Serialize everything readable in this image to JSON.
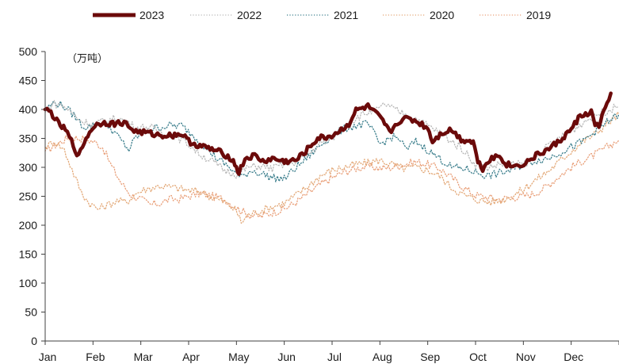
{
  "chart_data": {
    "type": "line",
    "title": "",
    "unit": "（万吨）",
    "xlabel": "",
    "ylabel": "",
    "ylim": [
      0,
      500
    ],
    "yticks": [
      0,
      50,
      100,
      150,
      200,
      250,
      300,
      350,
      400,
      450,
      500
    ],
    "months": [
      "Jan",
      "Feb",
      "Mar",
      "Apr",
      "May",
      "Jun",
      "Jul",
      "Aug",
      "Sep",
      "Oct",
      "Nov",
      "Dec"
    ],
    "grid": false,
    "legend_position": "top",
    "x_units": "month index (0 = start of Jan, 12 = end of Dec)",
    "series": [
      {
        "name": "2023",
        "color": "#6b0a0a",
        "style": "solid-thick",
        "points": [
          [
            0.0,
            400
          ],
          [
            0.12,
            395
          ],
          [
            0.28,
            375
          ],
          [
            0.42,
            365
          ],
          [
            0.55,
            345
          ],
          [
            0.7,
            318
          ],
          [
            0.82,
            345
          ],
          [
            1.0,
            370
          ],
          [
            1.2,
            378
          ],
          [
            1.45,
            375
          ],
          [
            1.65,
            378
          ],
          [
            1.78,
            368
          ],
          [
            1.9,
            362
          ],
          [
            2.1,
            360
          ],
          [
            2.35,
            356
          ],
          [
            2.6,
            355
          ],
          [
            2.85,
            358
          ],
          [
            3.0,
            345
          ],
          [
            3.2,
            338
          ],
          [
            3.45,
            332
          ],
          [
            3.7,
            325
          ],
          [
            3.9,
            315
          ],
          [
            4.0,
            300
          ],
          [
            4.05,
            290
          ],
          [
            4.18,
            315
          ],
          [
            4.38,
            320
          ],
          [
            4.55,
            310
          ],
          [
            4.75,
            315
          ],
          [
            5.0,
            310
          ],
          [
            5.25,
            312
          ],
          [
            5.45,
            328
          ],
          [
            5.7,
            350
          ],
          [
            5.95,
            353
          ],
          [
            6.15,
            362
          ],
          [
            6.35,
            375
          ],
          [
            6.5,
            398
          ],
          [
            6.75,
            405
          ],
          [
            6.95,
            390
          ],
          [
            7.1,
            375
          ],
          [
            7.2,
            360
          ],
          [
            7.4,
            380
          ],
          [
            7.6,
            385
          ],
          [
            7.8,
            378
          ],
          [
            8.0,
            368
          ],
          [
            8.1,
            345
          ],
          [
            8.3,
            360
          ],
          [
            8.5,
            365
          ],
          [
            8.7,
            348
          ],
          [
            8.95,
            345
          ],
          [
            9.05,
            310
          ],
          [
            9.15,
            298
          ],
          [
            9.3,
            315
          ],
          [
            9.5,
            320
          ],
          [
            9.65,
            305
          ],
          [
            9.85,
            302
          ],
          [
            10.05,
            308
          ],
          [
            10.3,
            322
          ],
          [
            10.5,
            330
          ],
          [
            10.75,
            345
          ],
          [
            11.0,
            365
          ],
          [
            11.15,
            385
          ],
          [
            11.3,
            392
          ],
          [
            11.42,
            395
          ],
          [
            11.5,
            375
          ],
          [
            11.58,
            370
          ],
          [
            11.68,
            395
          ],
          [
            11.75,
            410
          ],
          [
            11.83,
            428
          ]
        ]
      },
      {
        "name": "2022",
        "color": "#b8b8b8",
        "style": "dotted",
        "points": [
          [
            0.0,
            395
          ],
          [
            0.15,
            410
          ],
          [
            0.35,
            408
          ],
          [
            0.55,
            395
          ],
          [
            0.75,
            380
          ],
          [
            1.0,
            375
          ],
          [
            1.25,
            380
          ],
          [
            1.5,
            385
          ],
          [
            1.7,
            380
          ],
          [
            1.9,
            368
          ],
          [
            2.15,
            370
          ],
          [
            2.4,
            362
          ],
          [
            2.7,
            355
          ],
          [
            3.0,
            340
          ],
          [
            3.25,
            322
          ],
          [
            3.5,
            310
          ],
          [
            3.75,
            295
          ],
          [
            4.0,
            288
          ],
          [
            4.25,
            300
          ],
          [
            4.5,
            302
          ],
          [
            4.75,
            298
          ],
          [
            5.0,
            305
          ],
          [
            5.25,
            310
          ],
          [
            5.5,
            322
          ],
          [
            5.75,
            340
          ],
          [
            6.0,
            350
          ],
          [
            6.25,
            370
          ],
          [
            6.5,
            385
          ],
          [
            6.75,
            395
          ],
          [
            7.0,
            400
          ],
          [
            7.1,
            410
          ],
          [
            7.25,
            402
          ],
          [
            7.5,
            392
          ],
          [
            7.75,
            385
          ],
          [
            8.0,
            372
          ],
          [
            8.25,
            360
          ],
          [
            8.5,
            345
          ],
          [
            8.75,
            330
          ],
          [
            9.0,
            305
          ],
          [
            9.25,
            300
          ],
          [
            9.5,
            305
          ],
          [
            9.75,
            305
          ],
          [
            10.0,
            305
          ],
          [
            10.25,
            318
          ],
          [
            10.5,
            335
          ],
          [
            10.75,
            350
          ],
          [
            11.0,
            362
          ],
          [
            11.25,
            378
          ],
          [
            11.5,
            390
          ],
          [
            11.75,
            398
          ],
          [
            12.0,
            405
          ]
        ]
      },
      {
        "name": "2021",
        "color": "#3b7e8c",
        "style": "dotted",
        "points": [
          [
            0.0,
            400
          ],
          [
            0.2,
            412
          ],
          [
            0.4,
            405
          ],
          [
            0.6,
            390
          ],
          [
            0.8,
            370
          ],
          [
            1.0,
            372
          ],
          [
            1.2,
            380
          ],
          [
            1.4,
            365
          ],
          [
            1.6,
            345
          ],
          [
            1.75,
            330
          ],
          [
            1.9,
            352
          ],
          [
            2.1,
            362
          ],
          [
            2.3,
            368
          ],
          [
            2.6,
            372
          ],
          [
            2.85,
            372
          ],
          [
            3.1,
            355
          ],
          [
            3.35,
            335
          ],
          [
            3.6,
            315
          ],
          [
            3.85,
            300
          ],
          [
            4.1,
            282
          ],
          [
            4.3,
            295
          ],
          [
            4.5,
            290
          ],
          [
            4.75,
            282
          ],
          [
            5.0,
            280
          ],
          [
            5.25,
            300
          ],
          [
            5.5,
            318
          ],
          [
            5.75,
            338
          ],
          [
            6.0,
            355
          ],
          [
            6.3,
            368
          ],
          [
            6.5,
            372
          ],
          [
            6.75,
            375
          ],
          [
            6.9,
            355
          ],
          [
            7.0,
            340
          ],
          [
            7.25,
            352
          ],
          [
            7.4,
            350
          ],
          [
            7.55,
            330
          ],
          [
            7.75,
            345
          ],
          [
            8.0,
            330
          ],
          [
            8.25,
            315
          ],
          [
            8.5,
            300
          ],
          [
            8.75,
            298
          ],
          [
            9.0,
            292
          ],
          [
            9.25,
            285
          ],
          [
            9.5,
            290
          ],
          [
            9.75,
            295
          ],
          [
            10.0,
            305
          ],
          [
            10.25,
            312
          ],
          [
            10.5,
            315
          ],
          [
            10.75,
            325
          ],
          [
            11.0,
            335
          ],
          [
            11.25,
            345
          ],
          [
            11.5,
            362
          ],
          [
            11.75,
            378
          ],
          [
            12.0,
            392
          ]
        ]
      },
      {
        "name": "2020",
        "color": "#e3a877",
        "style": "dotted",
        "points": [
          [
            0.0,
            335
          ],
          [
            0.2,
            345
          ],
          [
            0.4,
            330
          ],
          [
            0.6,
            288
          ],
          [
            0.75,
            258
          ],
          [
            0.9,
            240
          ],
          [
            1.1,
            228
          ],
          [
            1.3,
            235
          ],
          [
            1.5,
            242
          ],
          [
            1.7,
            240
          ],
          [
            1.9,
            255
          ],
          [
            2.1,
            262
          ],
          [
            2.4,
            268
          ],
          [
            2.7,
            265
          ],
          [
            3.0,
            260
          ],
          [
            3.25,
            258
          ],
          [
            3.5,
            248
          ],
          [
            3.75,
            240
          ],
          [
            4.0,
            225
          ],
          [
            4.1,
            205
          ],
          [
            4.25,
            218
          ],
          [
            4.5,
            225
          ],
          [
            4.75,
            232
          ],
          [
            5.0,
            238
          ],
          [
            5.25,
            252
          ],
          [
            5.5,
            268
          ],
          [
            5.75,
            285
          ],
          [
            6.0,
            295
          ],
          [
            6.25,
            300
          ],
          [
            6.5,
            305
          ],
          [
            6.75,
            308
          ],
          [
            7.0,
            312
          ],
          [
            7.25,
            305
          ],
          [
            7.5,
            298
          ],
          [
            7.75,
            300
          ],
          [
            8.0,
            295
          ],
          [
            8.25,
            285
          ],
          [
            8.5,
            265
          ],
          [
            8.75,
            252
          ],
          [
            9.0,
            245
          ],
          [
            9.25,
            240
          ],
          [
            9.5,
            242
          ],
          [
            9.75,
            250
          ],
          [
            10.0,
            262
          ],
          [
            10.25,
            278
          ],
          [
            10.5,
            292
          ],
          [
            10.75,
            310
          ],
          [
            11.0,
            328
          ],
          [
            11.25,
            345
          ],
          [
            11.5,
            358
          ],
          [
            11.75,
            375
          ],
          [
            12.0,
            392
          ]
        ]
      },
      {
        "name": "2019",
        "color": "#e9a07a",
        "style": "dotted",
        "points": [
          [
            0.0,
            328
          ],
          [
            0.25,
            340
          ],
          [
            0.5,
            352
          ],
          [
            0.75,
            350
          ],
          [
            1.0,
            345
          ],
          [
            1.2,
            335
          ],
          [
            1.4,
            300
          ],
          [
            1.6,
            272
          ],
          [
            1.8,
            252
          ],
          [
            2.0,
            245
          ],
          [
            2.2,
            235
          ],
          [
            2.4,
            238
          ],
          [
            2.6,
            245
          ],
          [
            2.8,
            245
          ],
          [
            3.0,
            250
          ],
          [
            3.25,
            255
          ],
          [
            3.5,
            250
          ],
          [
            3.75,
            245
          ],
          [
            4.0,
            230
          ],
          [
            4.25,
            218
          ],
          [
            4.5,
            215
          ],
          [
            4.75,
            222
          ],
          [
            5.0,
            228
          ],
          [
            5.25,
            240
          ],
          [
            5.5,
            255
          ],
          [
            5.75,
            270
          ],
          [
            6.0,
            282
          ],
          [
            6.25,
            292
          ],
          [
            6.5,
            298
          ],
          [
            6.75,
            302
          ],
          [
            7.0,
            298
          ],
          [
            7.25,
            300
          ],
          [
            7.5,
            305
          ],
          [
            7.75,
            310
          ],
          [
            8.0,
            305
          ],
          [
            8.25,
            298
          ],
          [
            8.5,
            282
          ],
          [
            8.75,
            265
          ],
          [
            9.0,
            252
          ],
          [
            9.25,
            248
          ],
          [
            9.5,
            245
          ],
          [
            9.75,
            248
          ],
          [
            10.0,
            250
          ],
          [
            10.25,
            255
          ],
          [
            10.5,
            268
          ],
          [
            10.75,
            285
          ],
          [
            11.0,
            300
          ],
          [
            11.25,
            312
          ],
          [
            11.5,
            322
          ],
          [
            11.75,
            335
          ],
          [
            12.0,
            348
          ]
        ]
      }
    ]
  }
}
